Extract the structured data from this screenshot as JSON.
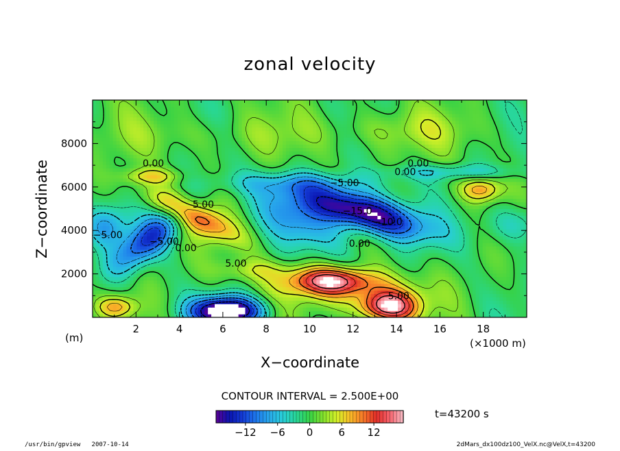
{
  "chart_data": {
    "type": "heatmap",
    "title": "zonal velocity",
    "xlabel": "X−coordinate",
    "ylabel": "Z−coordinate",
    "x_unit_left": "(m)",
    "x_unit_right": "(×1000 m)",
    "xlim": [
      0,
      20
    ],
    "ylim": [
      0,
      10000
    ],
    "x_ticks": [
      2,
      4,
      6,
      8,
      10,
      12,
      14,
      16,
      18
    ],
    "y_ticks": [
      2000,
      4000,
      6000,
      8000
    ],
    "contour_interval_text": "CONTOUR INTERVAL = 2.500E+00",
    "time_text": "t=43200 s",
    "colorbar": {
      "ticks": [
        -12,
        -6,
        0,
        6,
        12
      ],
      "tick_labels": [
        "−12",
        "−6",
        "0",
        "6",
        "12"
      ],
      "range": [
        -17.5,
        17.5
      ]
    },
    "contour_labels": [
      {
        "text": "0.00",
        "x": 2.8,
        "y": 7100
      },
      {
        "text": "0.00",
        "x": 15.0,
        "y": 7100
      },
      {
        "text": "0.00",
        "x": 14.4,
        "y": 6700
      },
      {
        "text": "5.00",
        "x": 5.1,
        "y": 5200
      },
      {
        "text": "−5.00",
        "x": 11.6,
        "y": 6200
      },
      {
        "text": "−15.0",
        "x": 12.2,
        "y": 4900
      },
      {
        "text": "−10.0",
        "x": 13.6,
        "y": 4400
      },
      {
        "text": "−5.00",
        "x": 0.7,
        "y": 3800
      },
      {
        "text": "−5.00",
        "x": 3.3,
        "y": 3500
      },
      {
        "text": "0.00",
        "x": 4.3,
        "y": 3200
      },
      {
        "text": "0.00",
        "x": 12.3,
        "y": 3400
      },
      {
        "text": "5.00",
        "x": 6.6,
        "y": 2500
      },
      {
        "text": "5.00",
        "x": 14.1,
        "y": 1000
      }
    ],
    "features": [
      {
        "kind": "jet",
        "sign": "negative",
        "center_x": 12.2,
        "center_z": 4900,
        "peak": -17.5
      },
      {
        "kind": "jet",
        "sign": "negative",
        "center_x": 3.0,
        "center_z": 3600,
        "peak": -11
      },
      {
        "kind": "jet",
        "sign": "negative",
        "center_x": 6.2,
        "center_z": 300,
        "peak": -17.5
      },
      {
        "kind": "jet",
        "sign": "positive",
        "center_x": 11.2,
        "center_z": 1700,
        "peak": 14
      },
      {
        "kind": "jet",
        "sign": "positive",
        "center_x": 13.5,
        "center_z": 200,
        "peak": 17
      },
      {
        "kind": "jet",
        "sign": "positive",
        "center_x": 4.5,
        "center_z": 4800,
        "peak": 10
      },
      {
        "kind": "jet",
        "sign": "positive",
        "center_x": 17.8,
        "center_z": 5900,
        "peak": 8
      }
    ]
  },
  "footer": {
    "left": "/usr/bin/gpview   2007-10-14",
    "right": "2dMars_dx100dz100_VelX.nc@VelX,t=43200"
  }
}
